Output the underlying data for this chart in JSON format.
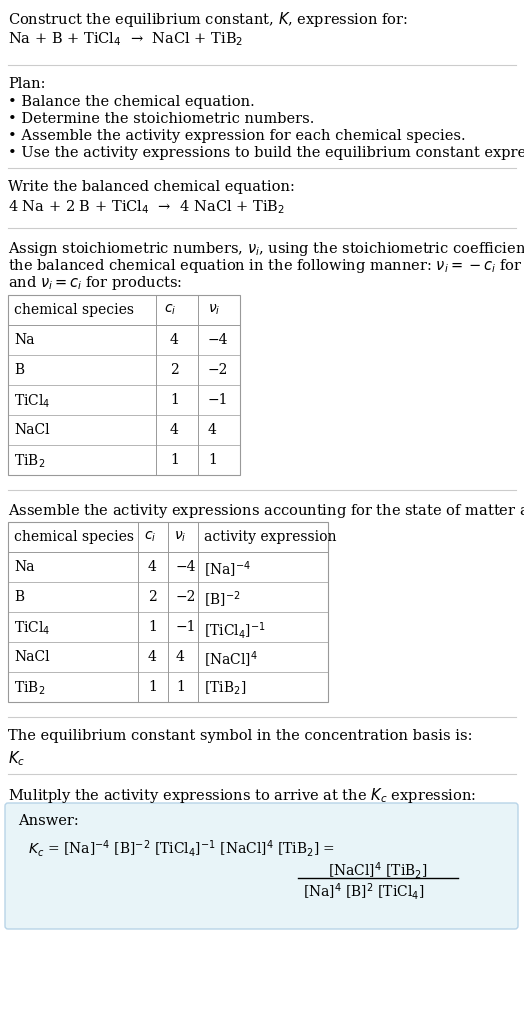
{
  "title_line1": "Construct the equilibrium constant, $K$, expression for:",
  "title_line2": "Na + B + TiCl$_4$  →  NaCl + TiB$_2$",
  "plan_header": "Plan:",
  "plan_items": [
    "• Balance the chemical equation.",
    "• Determine the stoichiometric numbers.",
    "• Assemble the activity expression for each chemical species.",
    "• Use the activity expressions to build the equilibrium constant expression."
  ],
  "balanced_header": "Write the balanced chemical equation:",
  "balanced_eq": "4 Na + 2 B + TiCl$_4$  →  4 NaCl + TiB$_2$",
  "stoich_intro": "Assign stoichiometric numbers, $\\nu_i$, using the stoichiometric coefficients, $c_i$, from the balanced chemical equation in the following manner: $\\nu_i = -c_i$ for reactants and $\\nu_i = c_i$ for products:",
  "table1_headers": [
    "chemical species",
    "$c_i$",
    "$\\nu_i$"
  ],
  "table1_rows": [
    [
      "Na",
      "4",
      "−4"
    ],
    [
      "B",
      "2",
      "−2"
    ],
    [
      "TiCl$_4$",
      "1",
      "−1"
    ],
    [
      "NaCl",
      "4",
      "4"
    ],
    [
      "TiB$_2$",
      "1",
      "1"
    ]
  ],
  "activity_intro": "Assemble the activity expressions accounting for the state of matter and $\\nu_i$:",
  "table2_headers": [
    "chemical species",
    "$c_i$",
    "$\\nu_i$",
    "activity expression"
  ],
  "table2_rows": [
    [
      "Na",
      "4",
      "−4",
      "[Na]$^{-4}$"
    ],
    [
      "B",
      "2",
      "−2",
      "[B]$^{-2}$"
    ],
    [
      "TiCl$_4$",
      "1",
      "−1",
      "[TiCl$_4$]$^{-1}$"
    ],
    [
      "NaCl",
      "4",
      "4",
      "[NaCl]$^4$"
    ],
    [
      "TiB$_2$",
      "1",
      "1",
      "[TiB$_2$]"
    ]
  ],
  "kc_intro": "The equilibrium constant symbol in the concentration basis is:",
  "kc_symbol": "$K_c$",
  "multiply_intro": "Mulitply the activity expressions to arrive at the $K_c$ expression:",
  "answer_label": "Answer:",
  "kc_expr": "$K_c$ = [Na]$^{-4}$ [B]$^{-2}$ [TiCl$_4$]$^{-1}$ [NaCl]$^4$ [TiB$_2$] =",
  "frac_num": "[NaCl]$^4$ [TiB$_2$]",
  "frac_den": "[Na]$^4$ [B]$^2$ [TiCl$_4$]",
  "bg_color": "#ffffff",
  "line_color": "#cccccc",
  "table_color": "#999999",
  "answer_bg": "#e8f4f8",
  "answer_border": "#b8d4e8",
  "text_color": "#000000"
}
